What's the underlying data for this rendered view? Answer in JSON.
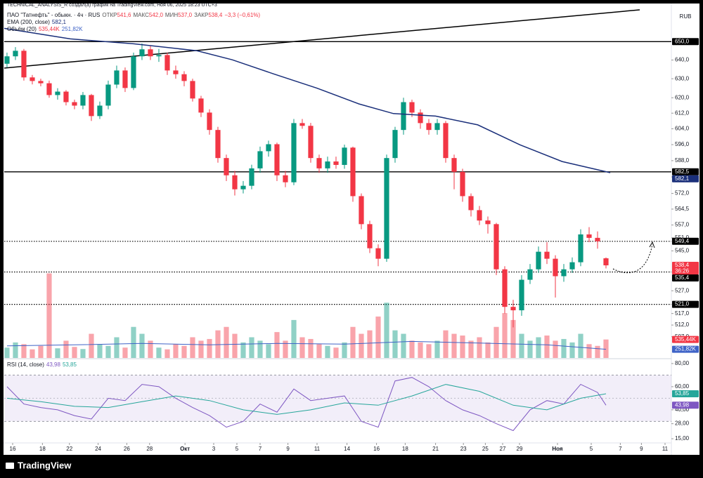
{
  "watermark": "TECHNICAL_ANALYSIS_R создал(а) график на TradingView.com, Ноя 06, 2025 18:23 UTC+3",
  "footer": "TradingView",
  "chart_data": {
    "type": "candlestick",
    "title": "ПАО \"Татнефть\" - обыкн. · 4ч · RUS",
    "ohlc_legend": [
      {
        "label": "ОТКР",
        "value": "541,6"
      },
      {
        "label": "МАКС",
        "value": "542,0"
      },
      {
        "label": "МИН",
        "value": "537,0"
      },
      {
        "label": "ЗАКР",
        "value": "538,4"
      }
    ],
    "change": "−3,3 (−0,61%)",
    "currency": "RUB",
    "x": [
      0,
      1,
      2,
      3,
      4,
      5,
      6,
      7,
      8,
      9,
      10,
      11,
      12,
      13,
      14,
      15,
      16,
      17,
      18,
      19,
      20,
      21,
      22,
      23,
      24,
      25,
      26,
      27,
      28,
      29,
      30,
      31,
      32,
      33,
      34,
      35,
      36,
      37,
      38,
      39,
      40,
      41,
      42,
      43,
      44,
      45,
      46,
      47,
      48,
      49,
      50,
      51,
      52,
      53,
      54,
      55,
      56,
      57,
      58,
      59,
      60,
      61,
      62,
      63,
      64,
      65,
      66,
      67,
      68,
      69,
      70,
      71
    ],
    "open": [
      638,
      642,
      645,
      630.7,
      628.8,
      627.6,
      621.4,
      623.2,
      617.7,
      615.9,
      621.4,
      610.5,
      615.9,
      626.9,
      634.4,
      625.1,
      642,
      645.8,
      642,
      642.7,
      634.4,
      632.4,
      628.8,
      619.6,
      612.3,
      603.4,
      589.3,
      580.8,
      574,
      575.7,
      584.2,
      592.7,
      596.2,
      580.8,
      577.4,
      606.9,
      605.5,
      589.3,
      584.2,
      587.6,
      585.9,
      594.5,
      570.7,
      557.4,
      546.2,
      541.4,
      589.3,
      603.4,
      617.7,
      612.3,
      606.9,
      603.4,
      606.9,
      589.3,
      582.5,
      570.7,
      564,
      559.1,
      557.4,
      536.6,
      519.9,
      518.4,
      531.9,
      536.6,
      544.6,
      541.4,
      533.5,
      536.6,
      539.8,
      552.6,
      551,
      541.6
    ],
    "high": [
      644,
      647,
      646,
      632,
      630,
      629,
      625,
      624,
      619,
      623,
      622,
      618,
      629,
      637,
      636,
      644,
      649,
      648,
      646,
      644,
      637,
      634,
      630,
      621,
      614,
      605,
      591,
      583,
      578,
      586,
      595,
      598,
      597,
      583,
      609,
      609,
      607,
      591,
      590,
      590,
      596,
      595,
      572,
      559,
      548,
      591,
      605,
      620,
      619,
      614,
      609,
      609,
      608,
      591,
      584,
      572,
      566,
      561,
      558,
      538,
      523,
      534,
      539,
      547,
      549,
      543,
      539,
      542,
      555,
      556,
      554,
      542
    ],
    "low": [
      636,
      640,
      629,
      627,
      626,
      620,
      619,
      616,
      614,
      614,
      608,
      609,
      614,
      625,
      623,
      624,
      640,
      640,
      639,
      632,
      630,
      626,
      618,
      610,
      601,
      587,
      578,
      571,
      572,
      574,
      582,
      590,
      578,
      575,
      576,
      604,
      587,
      582,
      582,
      584,
      584,
      568,
      555,
      544,
      538,
      540,
      587,
      601,
      610,
      604,
      601,
      601,
      587,
      574,
      568,
      561,
      557,
      553,
      534,
      517,
      511,
      516,
      530,
      535,
      539,
      524,
      531,
      535,
      538,
      549,
      546,
      537
    ],
    "close": [
      642,
      645,
      630.7,
      628.8,
      627.6,
      621.4,
      623.2,
      617.7,
      615.9,
      621.4,
      610.5,
      615.9,
      626.9,
      634.4,
      625.1,
      642,
      645.8,
      642,
      642.7,
      634.4,
      632.4,
      628.8,
      619.6,
      612.3,
      603.4,
      589.3,
      580.8,
      574,
      575.7,
      584.2,
      592.7,
      596.2,
      580.8,
      577.4,
      606.9,
      605.5,
      589.3,
      584.2,
      587.6,
      585.9,
      594.5,
      570.7,
      557.4,
      546.2,
      541.4,
      589.3,
      603.4,
      617.7,
      612.3,
      606.9,
      603.4,
      606.9,
      589.3,
      582.5,
      570.7,
      564,
      559.1,
      557.4,
      536.6,
      519.9,
      518.4,
      531.9,
      536.6,
      544.6,
      541.4,
      533.5,
      536.6,
      539.8,
      552.6,
      551,
      549.4,
      538.4
    ],
    "last_label": "538,4",
    "countdown": "36:26",
    "up_color": "#089981",
    "down_color": "#f23645",
    "xlim": [
      -0.33,
      78.75
    ],
    "xticks": [
      {
        "value": 0.67,
        "label": "16"
      },
      {
        "value": 4.2,
        "label": "18"
      },
      {
        "value": 7.4,
        "label": "22"
      },
      {
        "value": 10.8,
        "label": "24"
      },
      {
        "value": 14.2,
        "label": "26"
      },
      {
        "value": 16.9,
        "label": "28"
      },
      {
        "value": 21.1,
        "label": "Окт"
      },
      {
        "value": 24.5,
        "label": "3"
      },
      {
        "value": 27.25,
        "label": "5"
      },
      {
        "value": 30,
        "label": "7"
      },
      {
        "value": 33.3,
        "label": "9"
      },
      {
        "value": 36.75,
        "label": "11"
      },
      {
        "value": 40.3,
        "label": "14"
      },
      {
        "value": 43.8,
        "label": "16"
      },
      {
        "value": 47.2,
        "label": "18"
      },
      {
        "value": 50.8,
        "label": "21"
      },
      {
        "value": 54.1,
        "label": "23"
      },
      {
        "value": 56.7,
        "label": "25"
      },
      {
        "value": 58.75,
        "label": "27"
      },
      {
        "value": 60.75,
        "label": "29"
      },
      {
        "value": 65.25,
        "label": "Ноя"
      },
      {
        "value": 69.25,
        "label": "5"
      },
      {
        "value": 72.7,
        "label": "7"
      },
      {
        "value": 75.2,
        "label": "9"
      },
      {
        "value": 78,
        "label": "11"
      }
    ],
    "ylim": [
      498,
      670
    ],
    "log_scale": true,
    "yticks": [
      {
        "value": 640,
        "label": "640,0"
      },
      {
        "value": 630,
        "label": "630,0"
      },
      {
        "value": 620,
        "label": "620,0"
      },
      {
        "value": 612,
        "label": "612,0"
      },
      {
        "value": 604,
        "label": "604,0"
      },
      {
        "value": 596,
        "label": "596,0"
      },
      {
        "value": 588,
        "label": "588,0"
      },
      {
        "value": 580,
        "label": "580,0"
      },
      {
        "value": 572,
        "label": "572,0"
      },
      {
        "value": 564.5,
        "label": "564,5"
      },
      {
        "value": 557,
        "label": "557,0"
      },
      {
        "value": 551,
        "label": "551,0"
      },
      {
        "value": 545,
        "label": "545,0"
      },
      {
        "value": 527,
        "label": "527,0"
      },
      {
        "value": 517,
        "label": "517,0"
      },
      {
        "value": 512,
        "label": "512,0"
      },
      {
        "value": 507,
        "label": "507,0"
      }
    ],
    "ema": {
      "name": "EMA (200, close)",
      "value_label": "582,1",
      "color": "#1a2f7a",
      "x": [
        -0.33,
        7.5,
        15,
        22.5,
        26.7,
        31.7,
        36.7,
        41.7,
        45.8,
        50.8,
        55.8,
        60.8,
        65.8,
        71.5
      ],
      "values": [
        657.3,
        651.5,
        648.8,
        645,
        640.1,
        632.4,
        625.1,
        616.8,
        611.8,
        610.5,
        606,
        595.9,
        587.6,
        582.1
      ]
    },
    "levels": [
      {
        "value": 650,
        "label": "650,0",
        "style": "solid"
      },
      {
        "value": 582.5,
        "label": "582,5",
        "style": "solid"
      },
      {
        "value": 549.4,
        "label": "549,4",
        "style": "dotted"
      },
      {
        "value": 535.4,
        "label": "535,4",
        "style": "dotted"
      },
      {
        "value": 521,
        "label": "521,0",
        "style": "dotted"
      }
    ],
    "volume": {
      "name": "Объём (20)",
      "vlim": [
        0,
        2500
      ],
      "values": [
        300,
        450,
        400,
        250,
        350,
        2450,
        280,
        500,
        320,
        260,
        700,
        400,
        350,
        600,
        300,
        900,
        700,
        500,
        300,
        250,
        400,
        350,
        600,
        500,
        550,
        800,
        900,
        700,
        450,
        600,
        500,
        400,
        750,
        500,
        1100,
        600,
        550,
        400,
        350,
        300,
        450,
        900,
        700,
        800,
        1200,
        1600,
        800,
        700,
        500,
        450,
        400,
        500,
        800,
        700,
        650,
        500,
        600,
        450,
        900,
        1300,
        1100,
        700,
        500,
        600,
        650,
        500,
        550,
        450,
        700,
        400,
        350,
        535.44
      ],
      "value_label": "535,44K",
      "ma": {
        "x": [
          0,
          8,
          16,
          24,
          32,
          40,
          48,
          56,
          64,
          71
        ],
        "values": [
          350,
          380,
          420,
          380,
          420,
          400,
          480,
          430,
          380,
          251.82
        ],
        "value_label": "251,82K",
        "color": "#3f63c7"
      }
    },
    "rsi": {
      "name": "RSI (14, close)",
      "color": "#7e57c2",
      "value_label": "43,98",
      "x": [
        0,
        2,
        4,
        6,
        8,
        10,
        12,
        14,
        16,
        18,
        20,
        22,
        24,
        26,
        28,
        30,
        32,
        34,
        36,
        38,
        40,
        42,
        44,
        46,
        48,
        50,
        52,
        54,
        56,
        58,
        60,
        62,
        64,
        66,
        68,
        70,
        71
      ],
      "values": [
        60,
        45,
        42,
        40,
        35,
        32,
        50,
        48,
        62,
        60,
        50,
        42,
        35,
        25,
        30,
        45,
        38,
        58,
        48,
        50,
        52,
        30,
        25,
        65,
        68,
        60,
        48,
        40,
        35,
        28,
        22,
        40,
        48,
        45,
        62,
        55,
        43.98
      ],
      "ma": {
        "x": [
          0,
          4,
          8,
          12,
          16,
          20,
          24,
          28,
          32,
          36,
          40,
          44,
          48,
          52,
          56,
          60,
          64,
          68,
          71
        ],
        "values": [
          50,
          47,
          43,
          42,
          47,
          52,
          48,
          40,
          36,
          40,
          46,
          44,
          52,
          62,
          56,
          44,
          40,
          50,
          53.85
        ],
        "value_label": "53,85",
        "color": "#26a69a"
      },
      "ylim": [
        12,
        83.6
      ],
      "yticks": [
        {
          "value": 80,
          "label": "80,00"
        },
        {
          "value": 60,
          "label": "60,00"
        },
        {
          "value": 40,
          "label": "40,00"
        },
        {
          "value": 28,
          "label": "28,00"
        },
        {
          "value": 15,
          "label": "15,00"
        }
      ],
      "bands": [
        30,
        70
      ],
      "mid": 50
    }
  }
}
